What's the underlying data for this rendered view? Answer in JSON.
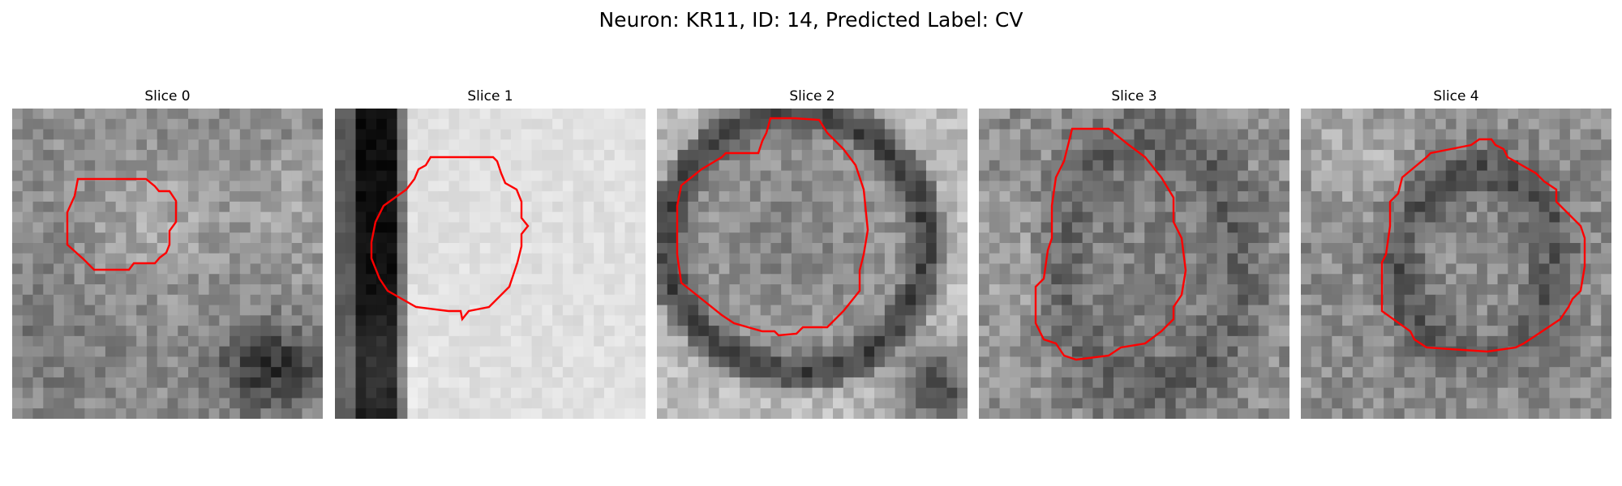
{
  "figure": {
    "title": "Neuron: KR11, ID: 14, Predicted Label: CV"
  },
  "panels": [
    {
      "title": "Slice 0"
    },
    {
      "title": "Slice 1"
    },
    {
      "title": "Slice 2"
    },
    {
      "title": "Slice 3"
    },
    {
      "title": "Slice 4"
    }
  ],
  "colors": {
    "contour": "#ff0000",
    "background": "#ffffff"
  },
  "colormap": "grayscale"
}
